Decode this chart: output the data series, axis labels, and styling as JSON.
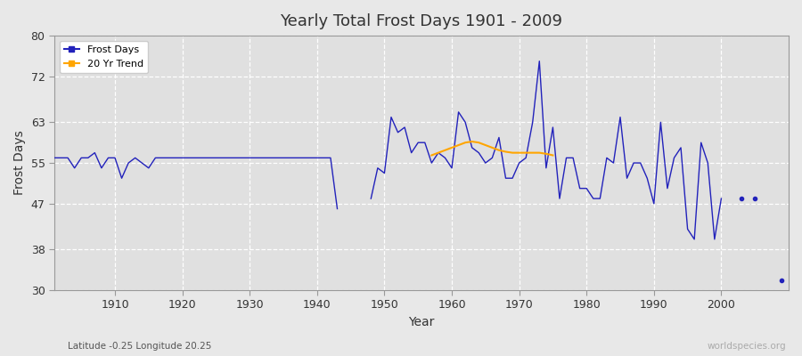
{
  "title": "Yearly Total Frost Days 1901 - 2009",
  "xlabel": "Year",
  "ylabel": "Frost Days",
  "subtitle": "Latitude -0.25 Longitude 20.25",
  "watermark": "worldspecies.org",
  "ylim": [
    30,
    80
  ],
  "yticks": [
    30,
    38,
    47,
    55,
    63,
    72,
    80
  ],
  "fig_bg_color": "#e8e8e8",
  "plot_bg_color": "#e0e0e0",
  "line_color": "#2222bb",
  "trend_color": "#ffa500",
  "frost_days": [
    [
      1901,
      56
    ],
    [
      1902,
      56
    ],
    [
      1903,
      56
    ],
    [
      1904,
      54
    ],
    [
      1905,
      56
    ],
    [
      1906,
      56
    ],
    [
      1907,
      57
    ],
    [
      1908,
      54
    ],
    [
      1909,
      56
    ],
    [
      1910,
      56
    ],
    [
      1911,
      52
    ],
    [
      1912,
      55
    ],
    [
      1913,
      56
    ],
    [
      1914,
      55
    ],
    [
      1915,
      54
    ],
    [
      1916,
      56
    ],
    [
      1917,
      56
    ],
    [
      1918,
      56
    ],
    [
      1919,
      56
    ],
    [
      1920,
      56
    ],
    [
      1921,
      56
    ],
    [
      1922,
      56
    ],
    [
      1923,
      56
    ],
    [
      1924,
      56
    ],
    [
      1925,
      56
    ],
    [
      1926,
      56
    ],
    [
      1927,
      56
    ],
    [
      1928,
      56
    ],
    [
      1929,
      56
    ],
    [
      1930,
      56
    ],
    [
      1931,
      56
    ],
    [
      1932,
      56
    ],
    [
      1933,
      56
    ],
    [
      1934,
      56
    ],
    [
      1935,
      56
    ],
    [
      1936,
      56
    ],
    [
      1937,
      56
    ],
    [
      1938,
      56
    ],
    [
      1939,
      56
    ],
    [
      1940,
      56
    ],
    [
      1941,
      56
    ],
    [
      1942,
      56
    ],
    [
      1943,
      46
    ],
    [
      1944,
      null
    ],
    [
      1945,
      null
    ],
    [
      1946,
      null
    ],
    [
      1947,
      null
    ],
    [
      1948,
      48
    ],
    [
      1949,
      54
    ],
    [
      1950,
      53
    ],
    [
      1951,
      64
    ],
    [
      1952,
      61
    ],
    [
      1953,
      62
    ],
    [
      1954,
      57
    ],
    [
      1955,
      59
    ],
    [
      1956,
      59
    ],
    [
      1957,
      55
    ],
    [
      1958,
      57
    ],
    [
      1959,
      56
    ],
    [
      1960,
      54
    ],
    [
      1961,
      65
    ],
    [
      1962,
      63
    ],
    [
      1963,
      58
    ],
    [
      1964,
      57
    ],
    [
      1965,
      55
    ],
    [
      1966,
      56
    ],
    [
      1967,
      60
    ],
    [
      1968,
      52
    ],
    [
      1969,
      52
    ],
    [
      1970,
      55
    ],
    [
      1971,
      56
    ],
    [
      1972,
      63
    ],
    [
      1973,
      75
    ],
    [
      1974,
      54
    ],
    [
      1975,
      62
    ],
    [
      1976,
      48
    ],
    [
      1977,
      56
    ],
    [
      1978,
      56
    ],
    [
      1979,
      50
    ],
    [
      1980,
      50
    ],
    [
      1981,
      48
    ],
    [
      1982,
      48
    ],
    [
      1983,
      56
    ],
    [
      1984,
      55
    ],
    [
      1985,
      64
    ],
    [
      1986,
      52
    ],
    [
      1987,
      55
    ],
    [
      1988,
      55
    ],
    [
      1989,
      52
    ],
    [
      1990,
      47
    ],
    [
      1991,
      63
    ],
    [
      1992,
      50
    ],
    [
      1993,
      56
    ],
    [
      1994,
      58
    ],
    [
      1995,
      42
    ],
    [
      1996,
      40
    ],
    [
      1997,
      59
    ],
    [
      1998,
      55
    ],
    [
      1999,
      40
    ],
    [
      2000,
      48
    ],
    [
      2001,
      null
    ],
    [
      2002,
      null
    ],
    [
      2003,
      48
    ],
    [
      2004,
      null
    ],
    [
      2005,
      48
    ],
    [
      2006,
      null
    ],
    [
      2007,
      null
    ],
    [
      2008,
      null
    ],
    [
      2009,
      32
    ]
  ],
  "trend_data": [
    [
      1957,
      56.5
    ],
    [
      1958,
      57.0
    ],
    [
      1959,
      57.5
    ],
    [
      1960,
      58.0
    ],
    [
      1961,
      58.5
    ],
    [
      1962,
      59.0
    ],
    [
      1963,
      59.2
    ],
    [
      1964,
      59.0
    ],
    [
      1965,
      58.5
    ],
    [
      1966,
      58.0
    ],
    [
      1967,
      57.5
    ],
    [
      1968,
      57.2
    ],
    [
      1969,
      57.0
    ],
    [
      1970,
      57.0
    ],
    [
      1971,
      57.0
    ],
    [
      1972,
      57.0
    ],
    [
      1973,
      57.0
    ],
    [
      1974,
      56.8
    ],
    [
      1975,
      56.5
    ]
  ]
}
